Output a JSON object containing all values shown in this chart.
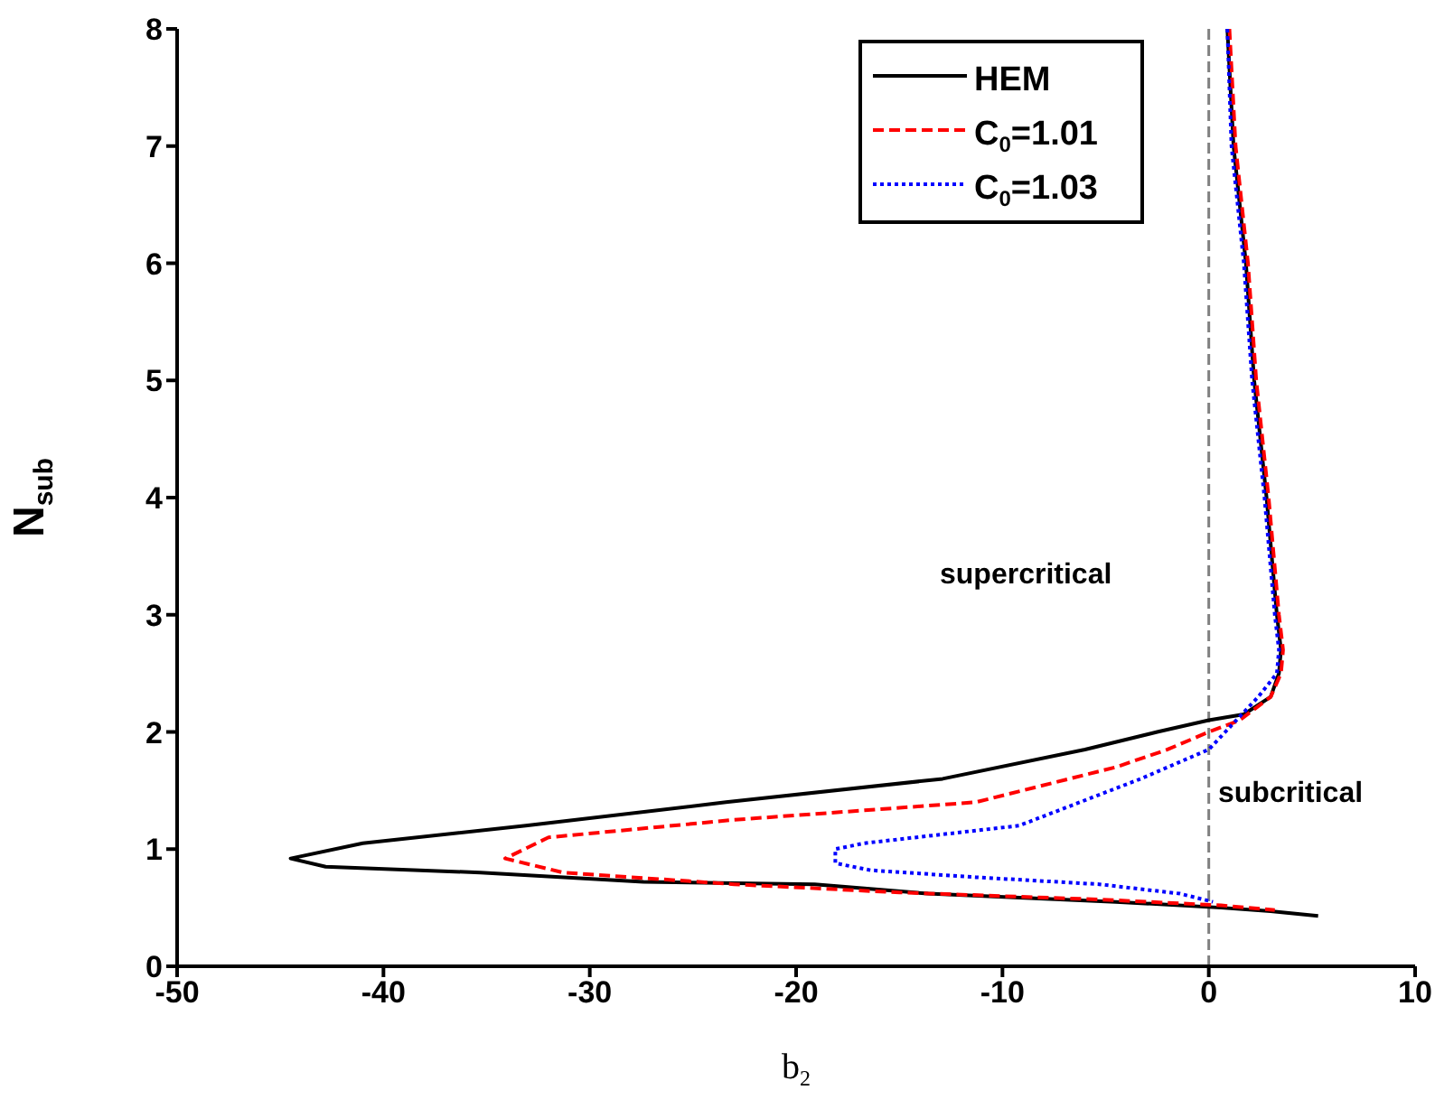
{
  "chart_data": {
    "type": "line",
    "xlabel": "b$_{2}$",
    "ylabel": "N$_{sub}$",
    "xlim": [
      -50,
      10
    ],
    "xticks": [
      -50,
      -40,
      -30,
      -20,
      -10,
      0,
      10
    ],
    "ylim": [
      0,
      8
    ],
    "yticks": [
      0,
      1,
      2,
      3,
      4,
      5,
      6,
      7,
      8
    ],
    "legend": "top right",
    "ref_lines": [
      {
        "axis": "x",
        "value": 0,
        "color": "#808080",
        "line_style": "dashed"
      }
    ],
    "annotations": [
      "supercritical",
      "subcritical"
    ],
    "series": [
      {
        "name": "HEM",
        "color": "#000000",
        "line_style": "solid",
        "x": [
          0.9,
          1.2,
          1.8,
          2.2,
          2.8,
          3.3,
          3.5,
          3.4,
          3.0,
          1.7,
          0,
          -2.5,
          -6,
          -12.9,
          -23.4,
          -33.1,
          -41,
          -44.5,
          -42.8,
          -35.3,
          -27.4,
          -19.1,
          -13.6,
          -4.5,
          0.6,
          3,
          5.3
        ],
        "values": [
          8,
          7,
          6,
          5,
          4,
          3,
          2.7,
          2.5,
          2.3,
          2.15,
          2.1,
          2.0,
          1.85,
          1.6,
          1.4,
          1.2,
          1.05,
          0.92,
          0.85,
          0.8,
          0.72,
          0.7,
          0.62,
          0.55,
          0.5,
          0.47,
          0.43
        ]
      },
      {
        "name": "C$_{0}$=1.01",
        "color": "#ff0000",
        "line_style": "dashed",
        "x": [
          1.0,
          1.3,
          1.9,
          2.3,
          2.9,
          3.4,
          3.6,
          3.5,
          3.0,
          1.5,
          0,
          -2,
          -4.5,
          -11.3,
          -23,
          -32,
          -34.1,
          -31.3,
          -23,
          -15,
          -5.3,
          0.6,
          3.2
        ],
        "values": [
          8,
          7,
          6,
          5,
          4,
          3,
          2.7,
          2.5,
          2.3,
          2.1,
          2.0,
          1.85,
          1.7,
          1.4,
          1.25,
          1.1,
          0.92,
          0.8,
          0.7,
          0.63,
          0.57,
          0.52,
          0.48
        ]
      },
      {
        "name": "C$_{0}$=1.03",
        "color": "#0000ff",
        "line_style": "dotted",
        "x": [
          0.9,
          1.1,
          1.7,
          2.1,
          2.7,
          3.2,
          3.4,
          3.3,
          2.4,
          0.8,
          0,
          -3.3,
          -9.2,
          -16.7,
          -18.1,
          -18.1,
          -16.4,
          -11.3,
          -5.3,
          -1.4,
          0.2
        ],
        "values": [
          8,
          7,
          6,
          5,
          4,
          3,
          2.7,
          2.5,
          2.3,
          2.0,
          1.85,
          1.6,
          1.2,
          1.05,
          1.0,
          0.88,
          0.82,
          0.76,
          0.7,
          0.62,
          0.55
        ]
      }
    ]
  }
}
